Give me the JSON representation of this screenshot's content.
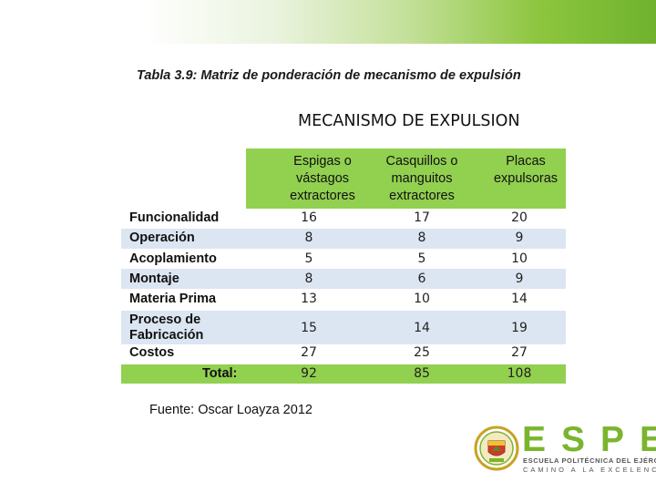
{
  "caption": {
    "label": "Tabla 3.9",
    "text": ": Matriz de ponderación de mecanismo de expulsión"
  },
  "table": {
    "title": "MECANISMO DE EXPULSION",
    "headers": [
      "Espigas o vástagos extractores",
      "Casquillos o manguitos extractores",
      "Placas expulsoras"
    ],
    "rows": [
      {
        "label": "Funcionalidad",
        "values": [
          "16",
          "17",
          "20"
        ]
      },
      {
        "label": "Operación",
        "values": [
          "8",
          "8",
          "9"
        ]
      },
      {
        "label": "Acoplamiento",
        "values": [
          "5",
          "5",
          "10"
        ]
      },
      {
        "label": "Montaje",
        "values": [
          "8",
          "6",
          "9"
        ]
      },
      {
        "label": "Materia Prima",
        "values": [
          "13",
          "10",
          "14"
        ]
      },
      {
        "label": "Proceso de Fabricación",
        "values": [
          "15",
          "14",
          "19"
        ]
      },
      {
        "label": "Costos",
        "values": [
          "27",
          "25",
          "27"
        ]
      }
    ],
    "total": {
      "label": "Total:",
      "values": [
        "92",
        "85",
        "108"
      ]
    },
    "colors": {
      "header_bg": "#92d050",
      "alt_row_bg": "#dce6f2",
      "total_bg": "#92d050"
    }
  },
  "source": "Fuente: Oscar Loayza 2012",
  "logo": {
    "name": "ESPE",
    "line1": "ESCUELA POLITÉCNICA DEL EJÉRCITO",
    "line2": "CAMINO A LA EXCELENCIA",
    "color": "#7ab52e"
  }
}
